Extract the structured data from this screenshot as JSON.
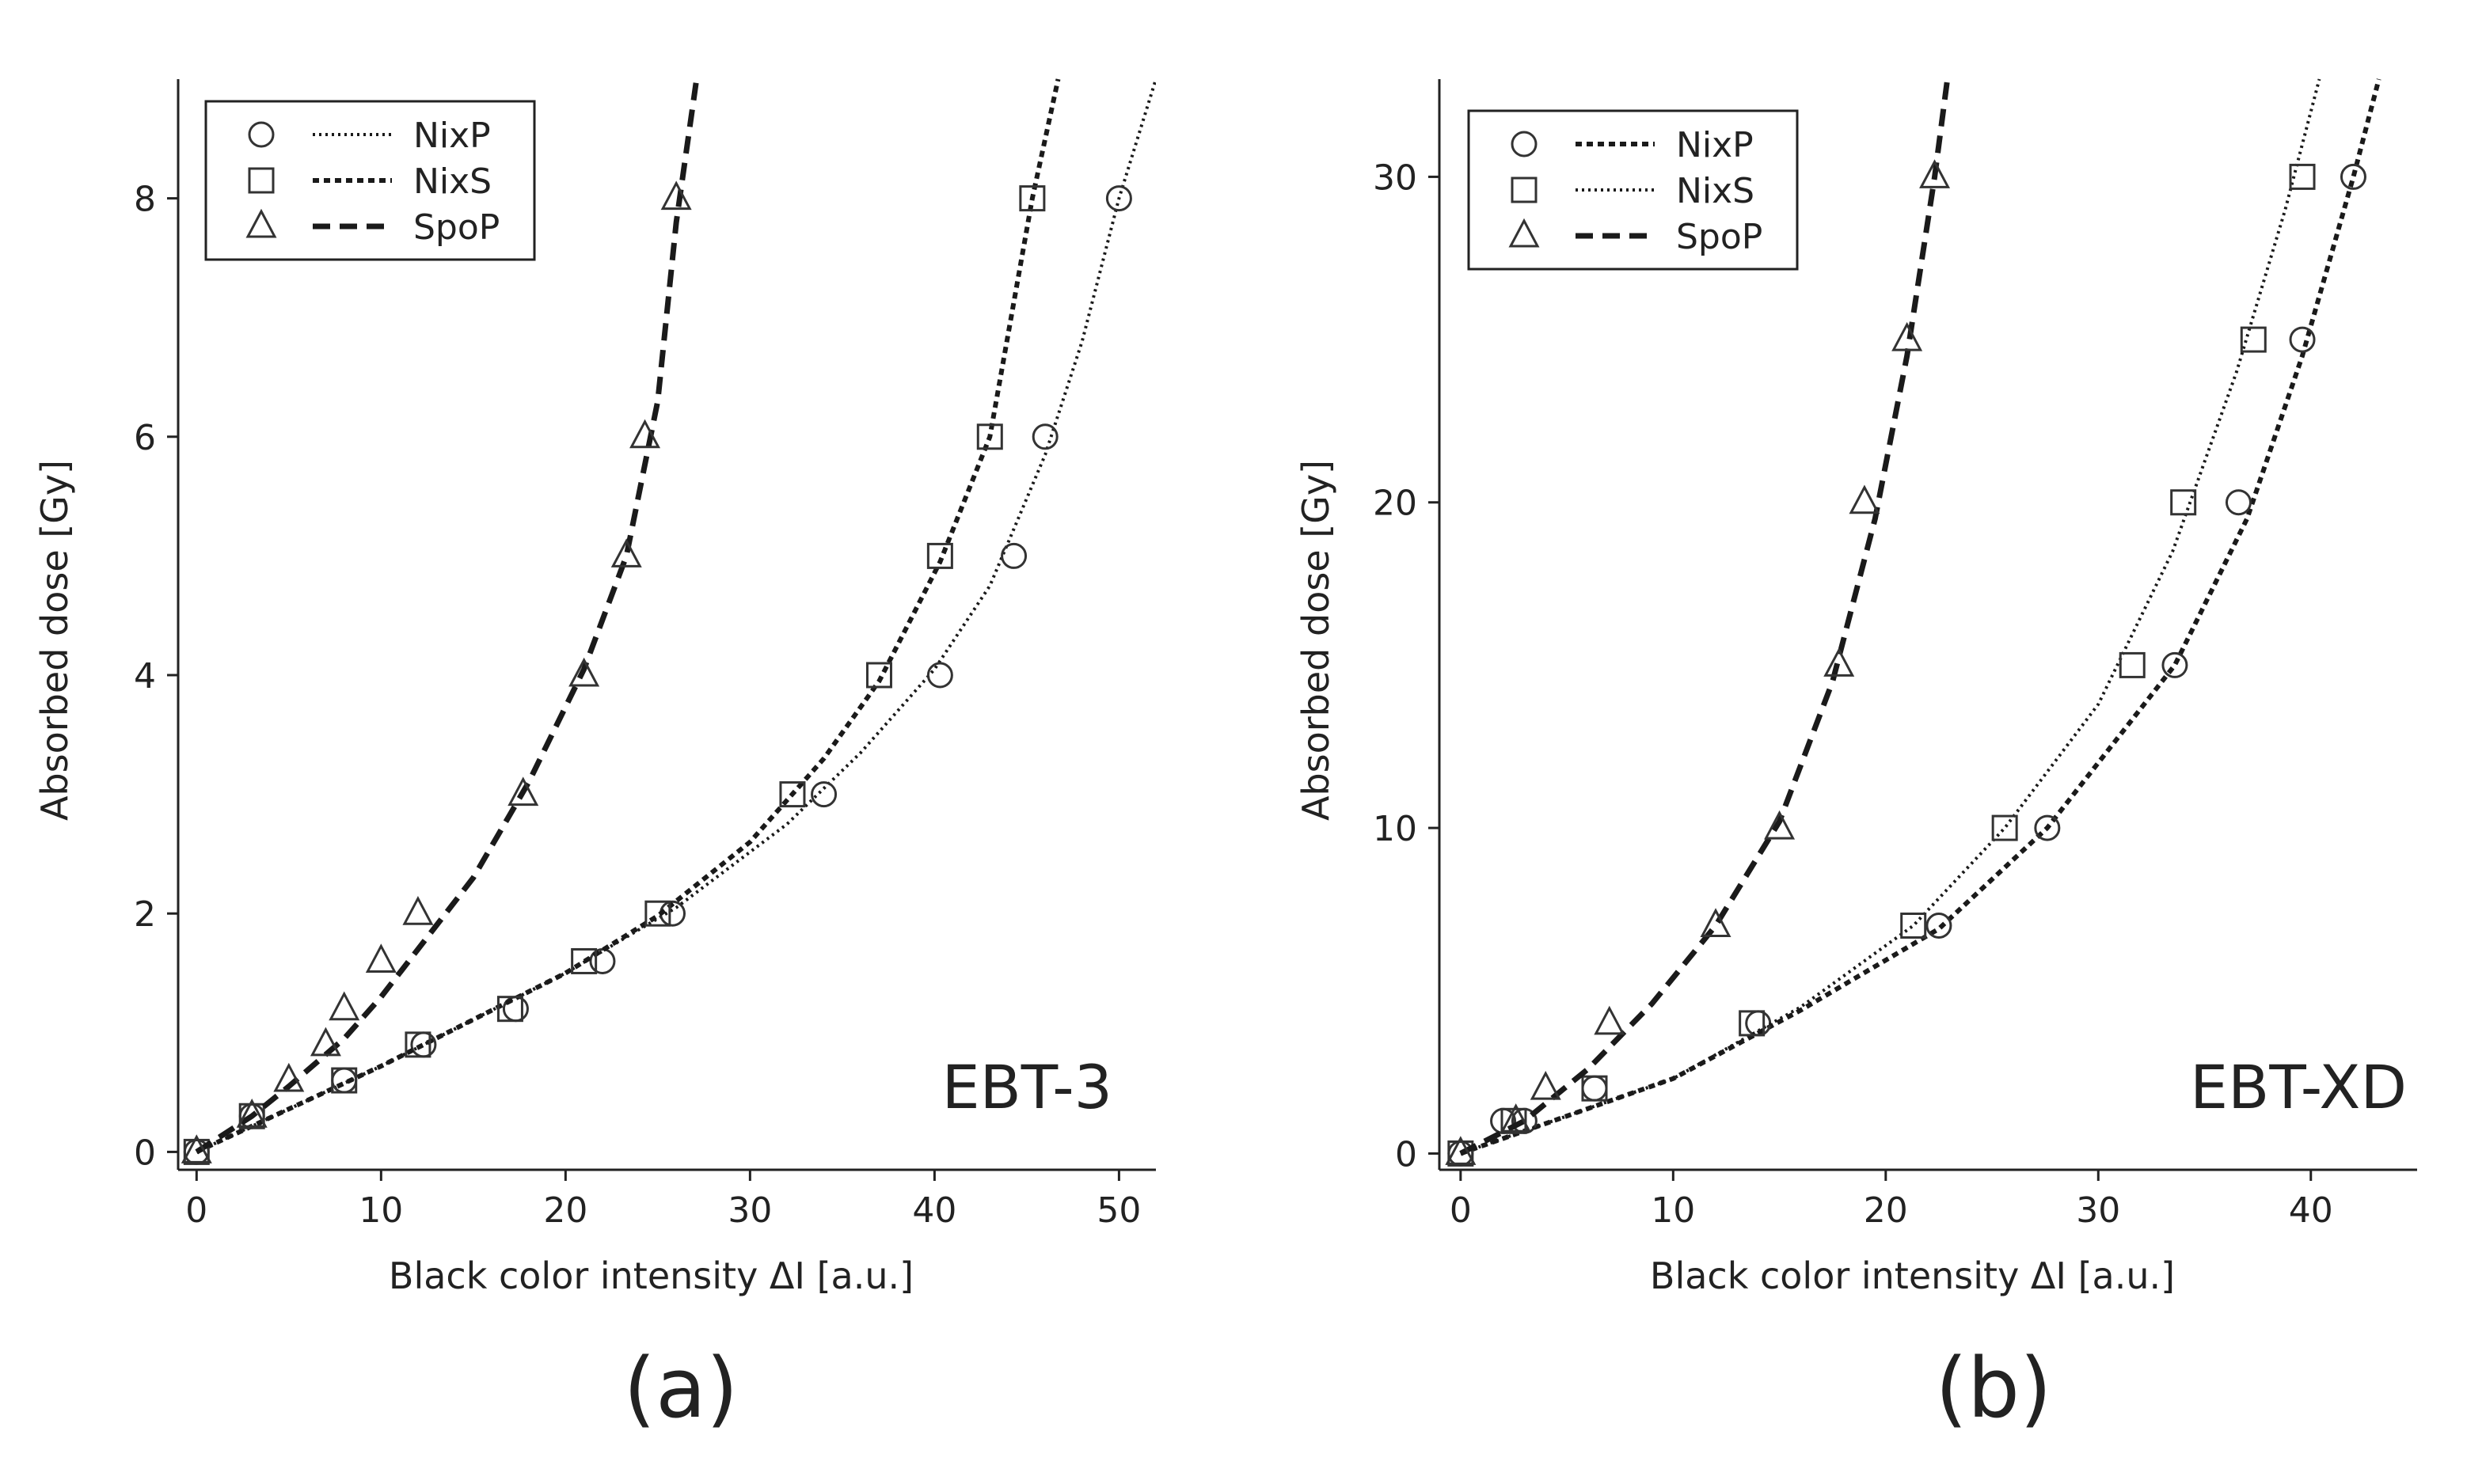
{
  "figure": {
    "panels": [
      {
        "id": "a",
        "panel_label": "(a)",
        "film_label": "EBT-3",
        "chart_data": {
          "type": "scatter",
          "xlabel": "Black color intensity ΔI [a.u.]",
          "ylabel": "Absorbed dose [Gy]",
          "xlim": [
            -1,
            52
          ],
          "ylim": [
            -0.15,
            9.0
          ],
          "xticks": [
            0,
            10,
            20,
            30,
            40,
            50
          ],
          "yticks": [
            0,
            2,
            4,
            6,
            8
          ],
          "grid": false,
          "legend_position": "top-left",
          "series": [
            {
              "name": "NixP",
              "marker": "circle",
              "line_style": "dotted",
              "points": [
                [
                  0,
                  0
                ],
                [
                  3,
                  0.3
                ],
                [
                  8,
                  0.6
                ],
                [
                  12.3,
                  0.9
                ],
                [
                  17.3,
                  1.2
                ],
                [
                  22,
                  1.6
                ],
                [
                  25.8,
                  2
                ],
                [
                  34,
                  3
                ],
                [
                  40.3,
                  4
                ],
                [
                  44.3,
                  5
                ],
                [
                  46,
                  6
                ],
                [
                  50,
                  8
                ]
              ],
              "fit": [
                [
                  0,
                  0
                ],
                [
                  10,
                  0.72
                ],
                [
                  20,
                  1.5
                ],
                [
                  26,
                  2.05
                ],
                [
                  32,
                  2.75
                ],
                [
                  36,
                  3.35
                ],
                [
                  40,
                  4.05
                ],
                [
                  43,
                  4.75
                ],
                [
                  46,
                  5.85
                ],
                [
                  48,
                  6.8
                ],
                [
                  50,
                  8.0
                ],
                [
                  52,
                  9.0
                ]
              ]
            },
            {
              "name": "NixS",
              "marker": "square",
              "line_style": "dotted-coarse",
              "points": [
                [
                  0,
                  0
                ],
                [
                  3,
                  0.3
                ],
                [
                  8,
                  0.6
                ],
                [
                  12,
                  0.9
                ],
                [
                  17,
                  1.2
                ],
                [
                  21,
                  1.6
                ],
                [
                  25,
                  2
                ],
                [
                  32.3,
                  3
                ],
                [
                  37,
                  4
                ],
                [
                  40.3,
                  5
                ],
                [
                  43,
                  6
                ],
                [
                  45.3,
                  8
                ]
              ],
              "fit": [
                [
                  0,
                  0
                ],
                [
                  10,
                  0.72
                ],
                [
                  20,
                  1.5
                ],
                [
                  25,
                  1.98
                ],
                [
                  30,
                  2.6
                ],
                [
                  34,
                  3.3
                ],
                [
                  37,
                  3.95
                ],
                [
                  40.3,
                  4.95
                ],
                [
                  43,
                  6.0
                ],
                [
                  45.3,
                  8.0
                ],
                [
                  46.7,
                  9.0
                ]
              ]
            },
            {
              "name": "SpoP",
              "marker": "triangle",
              "line_style": "dashed",
              "points": [
                [
                  0,
                  0
                ],
                [
                  3,
                  0.3
                ],
                [
                  5,
                  0.6
                ],
                [
                  7,
                  0.9
                ],
                [
                  8,
                  1.2
                ],
                [
                  10,
                  1.6
                ],
                [
                  12,
                  2
                ],
                [
                  17.7,
                  3
                ],
                [
                  21,
                  4
                ],
                [
                  23.3,
                  5
                ],
                [
                  24.3,
                  6
                ],
                [
                  26,
                  8
                ]
              ],
              "fit": [
                [
                  0,
                  0
                ],
                [
                  3,
                  0.3
                ],
                [
                  5,
                  0.55
                ],
                [
                  8,
                  0.95
                ],
                [
                  10,
                  1.3
                ],
                [
                  12,
                  1.7
                ],
                [
                  15,
                  2.3
                ],
                [
                  18,
                  3.1
                ],
                [
                  21,
                  4.05
                ],
                [
                  23.3,
                  5.0
                ],
                [
                  25,
                  6.3
                ],
                [
                  26,
                  7.8
                ],
                [
                  27.1,
                  9.0
                ]
              ]
            }
          ]
        }
      },
      {
        "id": "b",
        "panel_label": "(b)",
        "film_label": "EBT-XD",
        "chart_data": {
          "type": "scatter",
          "xlabel": "Black color intensity ΔI [a.u.]",
          "ylabel": "Absorbed dose [Gy]",
          "xlim": [
            -1,
            45
          ],
          "ylim": [
            -0.5,
            33
          ],
          "xticks": [
            0,
            10,
            20,
            30,
            40
          ],
          "yticks": [
            0,
            10,
            20,
            30
          ],
          "grid": false,
          "legend_position": "top-left",
          "series": [
            {
              "name": "NixP",
              "marker": "circle",
              "line_style": "dotted-coarse",
              "points": [
                [
                  0,
                  0
                ],
                [
                  2,
                  1
                ],
                [
                  3,
                  1
                ],
                [
                  6.3,
                  2
                ],
                [
                  14,
                  4
                ],
                [
                  22.5,
                  7
                ],
                [
                  27.6,
                  10
                ],
                [
                  33.6,
                  15
                ],
                [
                  36.6,
                  20
                ],
                [
                  39.6,
                  25
                ],
                [
                  42,
                  30
                ]
              ],
              "fit": [
                [
                  0,
                  0
                ],
                [
                  10,
                  2.3
                ],
                [
                  16,
                  4.4
                ],
                [
                  22.5,
                  6.9
                ],
                [
                  27.6,
                  10.0
                ],
                [
                  33.6,
                  15.0
                ],
                [
                  37,
                  19.5
                ],
                [
                  39.6,
                  24.5
                ],
                [
                  42,
                  30.0
                ],
                [
                  43.2,
                  33.0
                ]
              ]
            },
            {
              "name": "NixS",
              "marker": "square",
              "line_style": "dotted",
              "points": [
                [
                  0,
                  0
                ],
                [
                  2.5,
                  1
                ],
                [
                  6.3,
                  2
                ],
                [
                  13.7,
                  4
                ],
                [
                  21.3,
                  7
                ],
                [
                  25.6,
                  10
                ],
                [
                  31.6,
                  15
                ],
                [
                  34,
                  20
                ],
                [
                  37.3,
                  25
                ],
                [
                  39.6,
                  30
                ]
              ],
              "fit": [
                [
                  0,
                  0
                ],
                [
                  10,
                  2.3
                ],
                [
                  16,
                  4.5
                ],
                [
                  21.3,
                  7.0
                ],
                [
                  25.6,
                  10.0
                ],
                [
                  30,
                  13.8
                ],
                [
                  33.5,
                  18.5
                ],
                [
                  36.5,
                  24.0
                ],
                [
                  38.8,
                  29.0
                ],
                [
                  40.4,
                  33.0
                ]
              ]
            },
            {
              "name": "SpoP",
              "marker": "triangle",
              "line_style": "dashed",
              "points": [
                [
                  0,
                  0
                ],
                [
                  2.6,
                  1
                ],
                [
                  4,
                  2
                ],
                [
                  7,
                  4
                ],
                [
                  12,
                  7
                ],
                [
                  15,
                  10
                ],
                [
                  17.8,
                  15
                ],
                [
                  19,
                  20
                ],
                [
                  21,
                  25
                ],
                [
                  22.3,
                  30
                ]
              ],
              "fit": [
                [
                  0,
                  0
                ],
                [
                  3,
                  1.0
                ],
                [
                  6,
                  2.6
                ],
                [
                  9,
                  4.6
                ],
                [
                  12,
                  7.0
                ],
                [
                  15,
                  10.2
                ],
                [
                  17.5,
                  14.5
                ],
                [
                  19.5,
                  19.5
                ],
                [
                  21,
                  24.5
                ],
                [
                  22.3,
                  30.0
                ],
                [
                  22.9,
                  33.0
                ]
              ]
            }
          ]
        }
      }
    ]
  }
}
